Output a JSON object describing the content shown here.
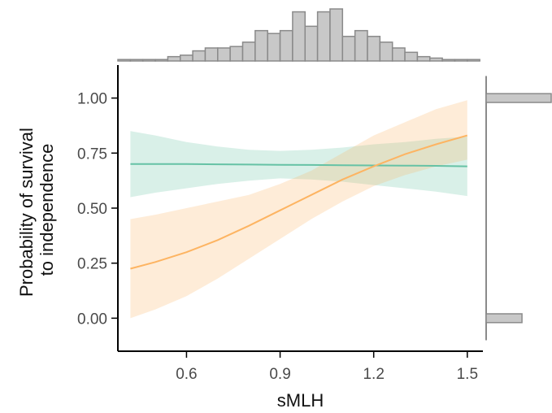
{
  "chart_data": {
    "type": "line",
    "xlabel": "sMLH",
    "ylabel": "Probability of survival to independence",
    "ylabel_lines": [
      "Probability of survival",
      "to independence"
    ],
    "xlim": [
      0.38,
      1.55
    ],
    "ylim": [
      -0.15,
      1.15
    ],
    "x_ticks": [
      0.6,
      0.9,
      1.2,
      1.5
    ],
    "x_tick_labels": [
      "0.6",
      "0.9",
      "1.2",
      "1.5"
    ],
    "y_ticks": [
      0.0,
      0.25,
      0.5,
      0.75,
      1.0
    ],
    "y_tick_labels": [
      "0.00",
      "0.25",
      "0.50",
      "0.75",
      "1.00"
    ],
    "grid": false,
    "x": [
      0.42,
      0.5,
      0.6,
      0.7,
      0.8,
      0.9,
      1.0,
      1.1,
      1.2,
      1.3,
      1.4,
      1.5
    ],
    "series": [
      {
        "color": "#66c2a5",
        "band_color": "#66c2a5",
        "values": [
          0.7,
          0.7,
          0.7,
          0.699,
          0.698,
          0.697,
          0.696,
          0.695,
          0.694,
          0.693,
          0.692,
          0.69
        ],
        "lower": [
          0.55,
          0.57,
          0.59,
          0.61,
          0.625,
          0.635,
          0.63,
          0.62,
          0.605,
          0.59,
          0.575,
          0.555
        ],
        "upper": [
          0.85,
          0.83,
          0.8,
          0.78,
          0.765,
          0.76,
          0.765,
          0.775,
          0.79,
          0.8,
          0.815,
          0.825
        ]
      },
      {
        "color": "#fdb462",
        "band_color": "#fdb462",
        "values": [
          0.225,
          0.255,
          0.3,
          0.355,
          0.42,
          0.49,
          0.56,
          0.63,
          0.69,
          0.745,
          0.79,
          0.83
        ],
        "lower": [
          0.0,
          0.04,
          0.1,
          0.18,
          0.27,
          0.36,
          0.45,
          0.53,
          0.6,
          0.65,
          0.69,
          0.72
        ],
        "upper": [
          0.45,
          0.47,
          0.5,
          0.53,
          0.56,
          0.61,
          0.67,
          0.75,
          0.83,
          0.89,
          0.95,
          0.99
        ]
      }
    ],
    "marginal_x_histogram": {
      "bin_start": 0.38,
      "bin_width": 0.04,
      "counts": [
        1,
        1,
        1,
        1,
        3,
        4,
        7,
        9,
        9,
        10,
        13,
        21,
        19,
        21,
        34,
        24,
        34,
        36,
        17,
        21,
        17,
        13,
        9,
        6,
        3,
        2,
        1,
        1,
        1
      ]
    },
    "marginal_y_histogram": {
      "bins": [
        {
          "y0": -0.02,
          "y1": 0.02,
          "count": 27
        },
        {
          "y0": 0.98,
          "y1": 1.02,
          "count": 49
        }
      ]
    },
    "hist_color": "#c8c8c8",
    "hist_edge_color": "#8a8a8a"
  }
}
